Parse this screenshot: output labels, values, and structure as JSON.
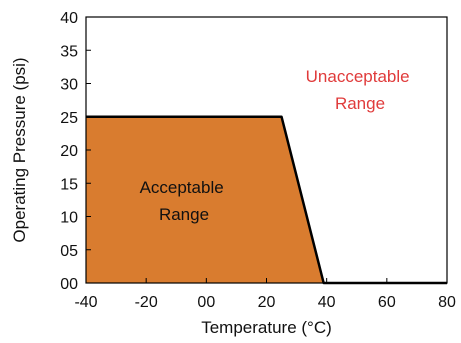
{
  "chart_data": {
    "type": "area",
    "title": "",
    "xlabel": "Temperature (°C)",
    "ylabel": "Operating Pressure (psi)",
    "xlim": [
      -40,
      80
    ],
    "ylim": [
      0,
      40
    ],
    "x_ticks": [
      -40,
      -20,
      0,
      20,
      40,
      60,
      80
    ],
    "x_tick_labels": [
      "-40",
      "-20",
      "00",
      "20",
      "40",
      "60",
      "80"
    ],
    "y_ticks": [
      0,
      5,
      10,
      15,
      20,
      25,
      30,
      35,
      40
    ],
    "y_tick_labels": [
      "00",
      "05",
      "10",
      "15",
      "20",
      "25",
      "30",
      "35",
      "40"
    ],
    "grid": false,
    "boundary": {
      "x": [
        -40,
        25,
        39,
        80
      ],
      "y": [
        25,
        25,
        0,
        0
      ]
    },
    "regions": [
      {
        "label_lines": [
          "Acceptable",
          "Range"
        ],
        "fill": "#d97c2f",
        "text_color": "#111111"
      },
      {
        "label_lines": [
          "Unacceptable",
          "Range"
        ],
        "text_color": "#e03b3b"
      }
    ]
  }
}
